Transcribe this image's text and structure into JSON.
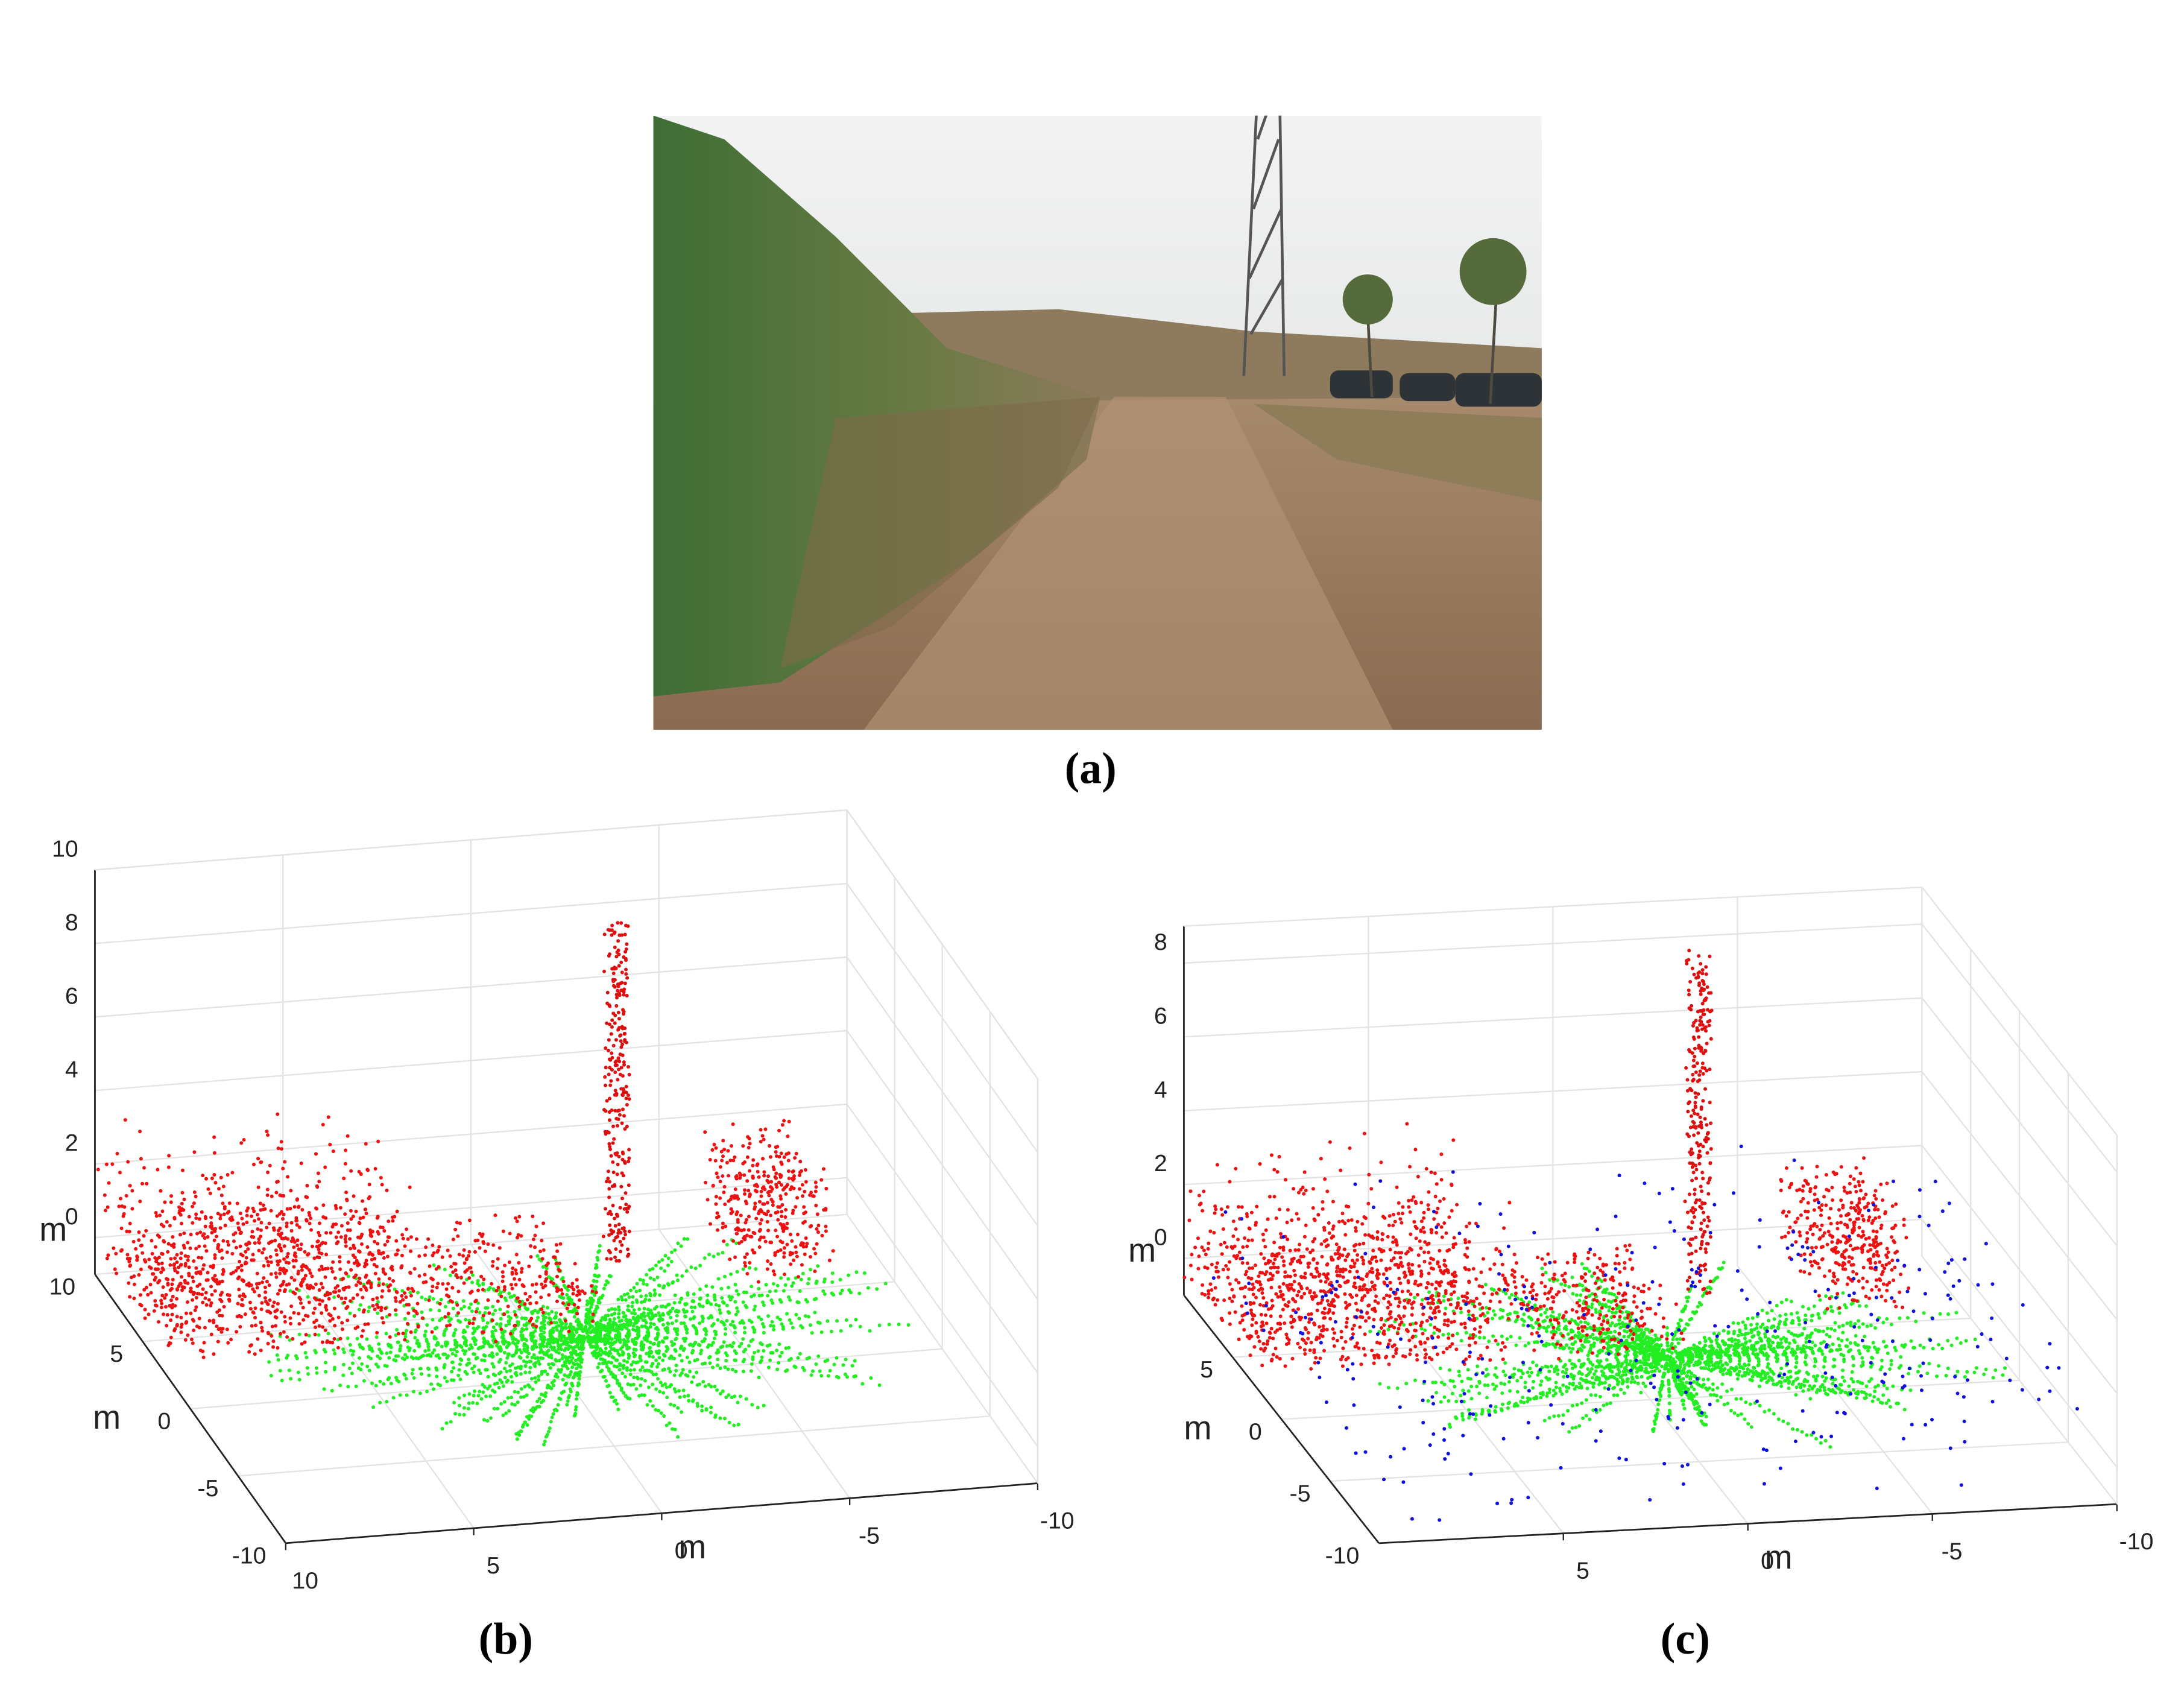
{
  "photo": {
    "caption": "(a)"
  },
  "plots": [
    {
      "caption": "(b)",
      "zlabel": "m",
      "ylabel": "m",
      "xlabel": "m",
      "zticks": [
        0,
        2,
        4,
        6,
        8,
        10
      ],
      "yticks": [
        10,
        5,
        0,
        -5,
        -10
      ],
      "xticks": [
        10,
        5,
        0,
        -5,
        -10
      ]
    },
    {
      "caption": "(c)",
      "zlabel": "m",
      "ylabel": "m",
      "xlabel": "m",
      "zticks": [
        0,
        2,
        4,
        6,
        8
      ],
      "yticks": [
        5,
        0,
        -5,
        -10
      ],
      "xticks": [
        5,
        0,
        -5,
        -10
      ]
    }
  ]
}
